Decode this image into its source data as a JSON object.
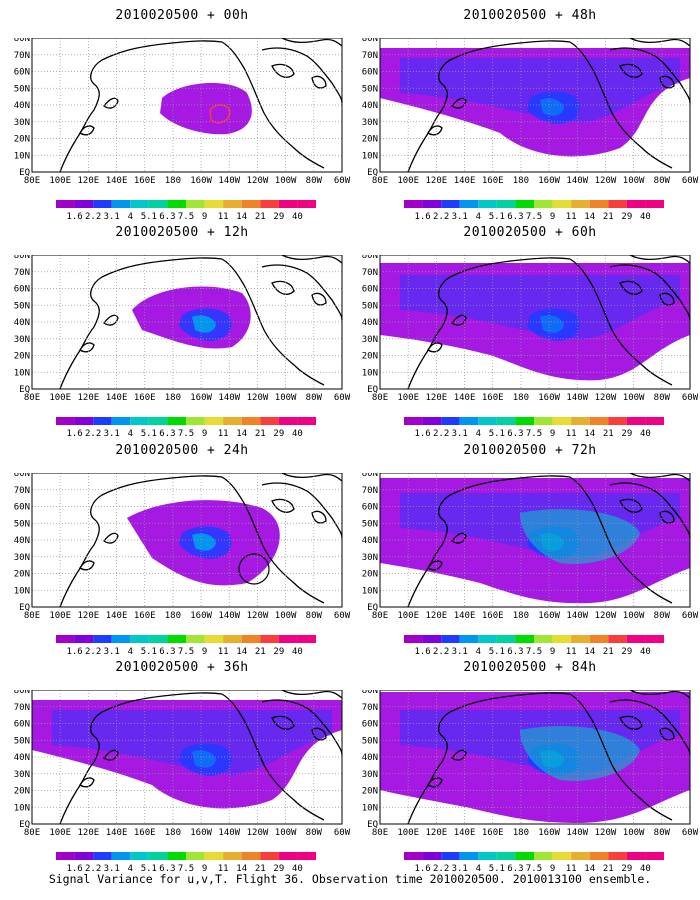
{
  "panels": [
    {
      "title": "2010020500 + 00h",
      "coverage": 1
    },
    {
      "title": "2010020500 + 48h",
      "coverage": 4
    },
    {
      "title": "2010020500 + 12h",
      "coverage": 2
    },
    {
      "title": "2010020500 + 60h",
      "coverage": 5
    },
    {
      "title": "2010020500 + 24h",
      "coverage": 3
    },
    {
      "title": "2010020500 + 72h",
      "coverage": 6
    },
    {
      "title": "2010020500 + 36h",
      "coverage": 4
    },
    {
      "title": "2010020500 + 84h",
      "coverage": 7
    }
  ],
  "lat_labels": [
    "80N",
    "70N",
    "60N",
    "50N",
    "40N",
    "30N",
    "20N",
    "10N",
    "EQ"
  ],
  "lon_labels": [
    "80E",
    "100E",
    "120E",
    "140E",
    "160E",
    "180",
    "160W",
    "140W",
    "120W",
    "100W",
    "80W",
    "60W"
  ],
  "colorbar": {
    "labels": [
      "1.6",
      "2.2",
      "3.1",
      "4",
      "5.1",
      "6.3",
      "7.5",
      "9",
      "11",
      "14",
      "21",
      "29",
      "40"
    ],
    "colors": [
      "#a000c8",
      "#8200dc",
      "#1e3cff",
      "#0096f0",
      "#00c8c8",
      "#00d2a0",
      "#00dc00",
      "#a0e632",
      "#e6dc32",
      "#e6af2d",
      "#f08228",
      "#fa3c3c",
      "#f00082"
    ]
  },
  "caption": "Signal Variance for u,v,T. Flight 36. Observation time 2010020500. 2010013100 ensemble."
}
